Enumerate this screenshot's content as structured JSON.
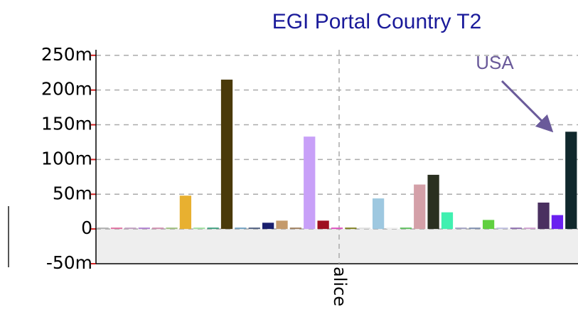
{
  "chart_data": {
    "type": "bar",
    "title": "EGI Portal Country T2",
    "annotation": "USA",
    "categories": [
      "alice"
    ],
    "ylim": [
      -50,
      258
    ],
    "yticks": [
      {
        "value": -50,
        "label": "-50m"
      },
      0,
      {
        "value": 50,
        "label": "50m"
      },
      {
        "value": 100,
        "label": "100m"
      },
      {
        "value": 150,
        "label": "150m"
      },
      {
        "value": 200,
        "label": "200m"
      },
      {
        "value": 250,
        "label": "250m"
      }
    ],
    "grid": true,
    "series": [
      {
        "color": "#b0b0b0",
        "values": [
          2
        ]
      },
      {
        "color": "#e070a0",
        "values": [
          2
        ]
      },
      {
        "color": "#c0a0c0",
        "values": [
          2
        ]
      },
      {
        "color": "#b080d0",
        "values": [
          2
        ]
      },
      {
        "color": "#d090b0",
        "values": [
          2
        ]
      },
      {
        "color": "#a0c080",
        "values": [
          2
        ]
      },
      {
        "color": "#e8b030",
        "values": [
          48
        ]
      },
      {
        "color": "#a0e0a0",
        "values": [
          2
        ]
      },
      {
        "color": "#40a080",
        "values": [
          2
        ]
      },
      {
        "color": "#4a3a0a",
        "values": [
          215
        ]
      },
      {
        "color": "#70a0c0",
        "values": [
          2
        ]
      },
      {
        "color": "#506080",
        "values": [
          2
        ]
      },
      {
        "color": "#1a1f6e",
        "values": [
          9
        ]
      },
      {
        "color": "#c49a6c",
        "values": [
          12
        ]
      },
      {
        "color": "#a08060",
        "values": [
          2
        ]
      },
      {
        "color": "#c8a0f8",
        "values": [
          133
        ]
      },
      {
        "color": "#9e1020",
        "values": [
          12
        ]
      },
      {
        "color": "#e050c0",
        "values": [
          2
        ]
      },
      {
        "color": "#808020",
        "values": [
          2
        ]
      },
      {
        "color": "#e0e0e0",
        "values": [
          2
        ]
      },
      {
        "color": "#9ec8e0",
        "values": [
          44
        ]
      },
      {
        "color": "#f0f0f0",
        "values": [
          2
        ]
      },
      {
        "color": "#60c060",
        "values": [
          2
        ]
      },
      {
        "color": "#d4a0a8",
        "values": [
          64
        ]
      },
      {
        "color": "#2a3020",
        "values": [
          78
        ]
      },
      {
        "color": "#40f0b0",
        "values": [
          24
        ]
      },
      {
        "color": "#a0a0c0",
        "values": [
          2
        ]
      },
      {
        "color": "#8090b0",
        "values": [
          2
        ]
      },
      {
        "color": "#60d040",
        "values": [
          13
        ]
      },
      {
        "color": "#c0c0e0",
        "values": [
          2
        ]
      },
      {
        "color": "#9070b0",
        "values": [
          2
        ]
      },
      {
        "color": "#d0a0d0",
        "values": [
          2
        ]
      },
      {
        "color": "#4a3060",
        "values": [
          38
        ]
      },
      {
        "color": "#6a20f0",
        "values": [
          20
        ]
      },
      {
        "color": "#10282c",
        "values": [
          140
        ]
      }
    ]
  }
}
